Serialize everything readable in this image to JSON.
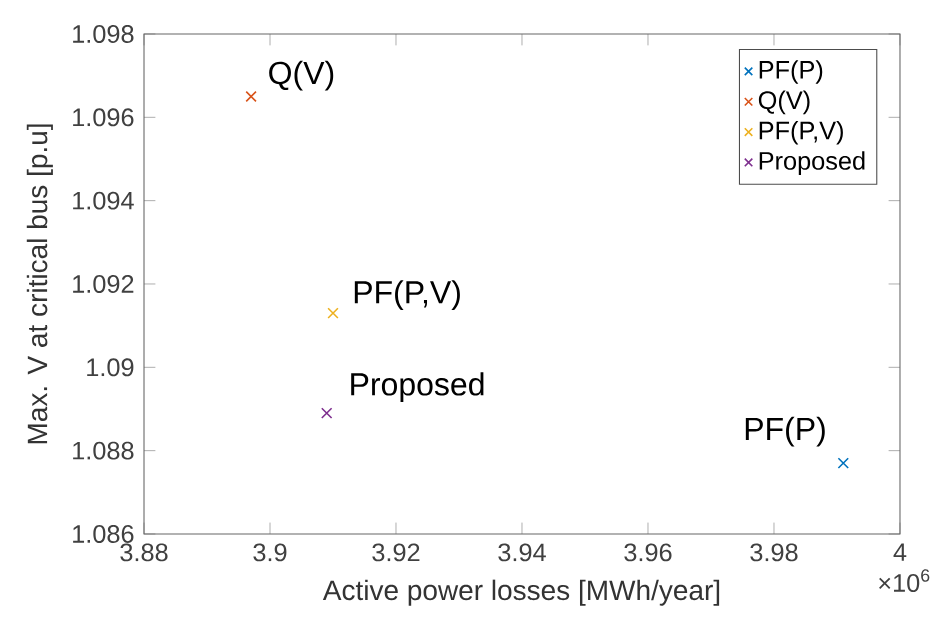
{
  "chart_data": {
    "type": "scatter",
    "xlabel": "Active power losses [MWh/year]",
    "ylabel": "Max. V at critical bus [p.u]",
    "xlim": [
      3.88,
      4
    ],
    "ylim": [
      1.086,
      1.098
    ],
    "xticks": [
      3.88,
      3.9,
      3.92,
      3.94,
      3.96,
      3.98,
      4
    ],
    "yticks": [
      1.086,
      1.088,
      1.09,
      1.092,
      1.094,
      1.096,
      1.098
    ],
    "grid": false,
    "legend": "top right",
    "marker": "cross",
    "series": [
      {
        "name": "PF(P)",
        "color": "#0072bd",
        "x": [
          3.991
        ],
        "values": [
          1.0877
        ]
      },
      {
        "name": "Q(V)",
        "color": "#d95319",
        "x": [
          3.897
        ],
        "values": [
          1.0965
        ]
      },
      {
        "name": "PF(P,V)",
        "color": "#edb120",
        "x": [
          3.91
        ],
        "values": [
          1.0913
        ]
      },
      {
        "name": "Proposed",
        "color": "#7e2f8e",
        "x": [
          3.909
        ],
        "values": [
          1.0889
        ]
      }
    ],
    "annotations": [
      "×10$^{6}$",
      {
        "text": "PF(P)",
        "x": 3.991,
        "y": 1.0877
      },
      {
        "text": "Q(V)",
        "x": 3.897,
        "y": 1.0965
      },
      {
        "text": "PF(P,V)",
        "x": 3.91,
        "y": 1.0913
      },
      {
        "text": "Proposed",
        "x": 3.909,
        "y": 1.0889
      }
    ]
  }
}
